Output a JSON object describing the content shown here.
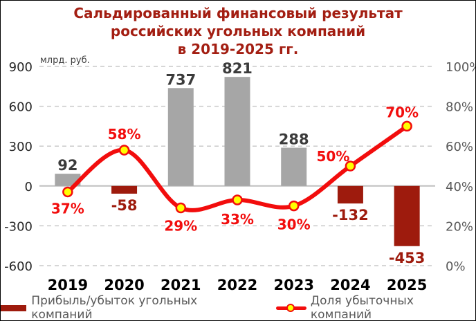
{
  "title_lines": [
    "Сальдированный финансовый результат",
    "российских угольных компаний",
    "в 2019-2025 гг."
  ],
  "title_color": "#A31E12",
  "chart_data": {
    "type": "combo-bar-line",
    "title": "Сальдированный финансовый результат российских угольных компаний в 2019-2025 гг.",
    "categories": [
      "2019",
      "2020",
      "2021",
      "2022",
      "2023",
      "2024",
      "2025"
    ],
    "series": [
      {
        "name": "Прибыль/убыток угольных компаний",
        "type": "bar",
        "axis": "left",
        "values": [
          92,
          -58,
          737,
          821,
          288,
          -132,
          -453
        ],
        "color_positive": "#A6A6A6",
        "color_negative": "#9E1B0D",
        "label_color_positive": "#3B3B3B",
        "label_color_negative": "#9E1B0D"
      },
      {
        "name": "Доля убыточных компаний",
        "type": "line",
        "axis": "right",
        "values": [
          37,
          58,
          29,
          33,
          30,
          50,
          70
        ],
        "unit": "%",
        "color": "#F20D0D",
        "marker_fill": "#FFFF00",
        "label_offsets": [
          [
            0,
            31
          ],
          [
            0,
            -16
          ],
          [
            0,
            33
          ],
          [
            0,
            35
          ],
          [
            0,
            34
          ],
          [
            -25,
            -7
          ],
          [
            -7,
            -13
          ]
        ]
      }
    ],
    "left_axis": {
      "unit": "млрд. руб.",
      "ticks": [
        900,
        600,
        300,
        0,
        -300,
        -600
      ],
      "max": 900,
      "min": -600
    },
    "right_axis": {
      "tick_labels": [
        "100%",
        "80%",
        "60%",
        "40%",
        "20%",
        "0%"
      ],
      "max": 100,
      "min": 0
    },
    "grid": "dashed horizontal, solid zero line",
    "legend_position": "bottom"
  },
  "colors": {
    "grid": "#C9C9C9",
    "zero_line": "#BFBFBF",
    "left_ticks": "#262626",
    "right_ticks": "#595959",
    "unit_label": "#404040",
    "year_labels": "#000000",
    "legend_text": "#595959"
  },
  "legend": {
    "items": [
      {
        "label": "Прибыль/убыток угольных компаний",
        "swatch": "bar",
        "color": "#9E1B0D"
      },
      {
        "label": "Доля убыточных компаний",
        "swatch": "line-marker",
        "color": "#F20D0D",
        "marker_fill": "#FFFF00"
      }
    ]
  }
}
